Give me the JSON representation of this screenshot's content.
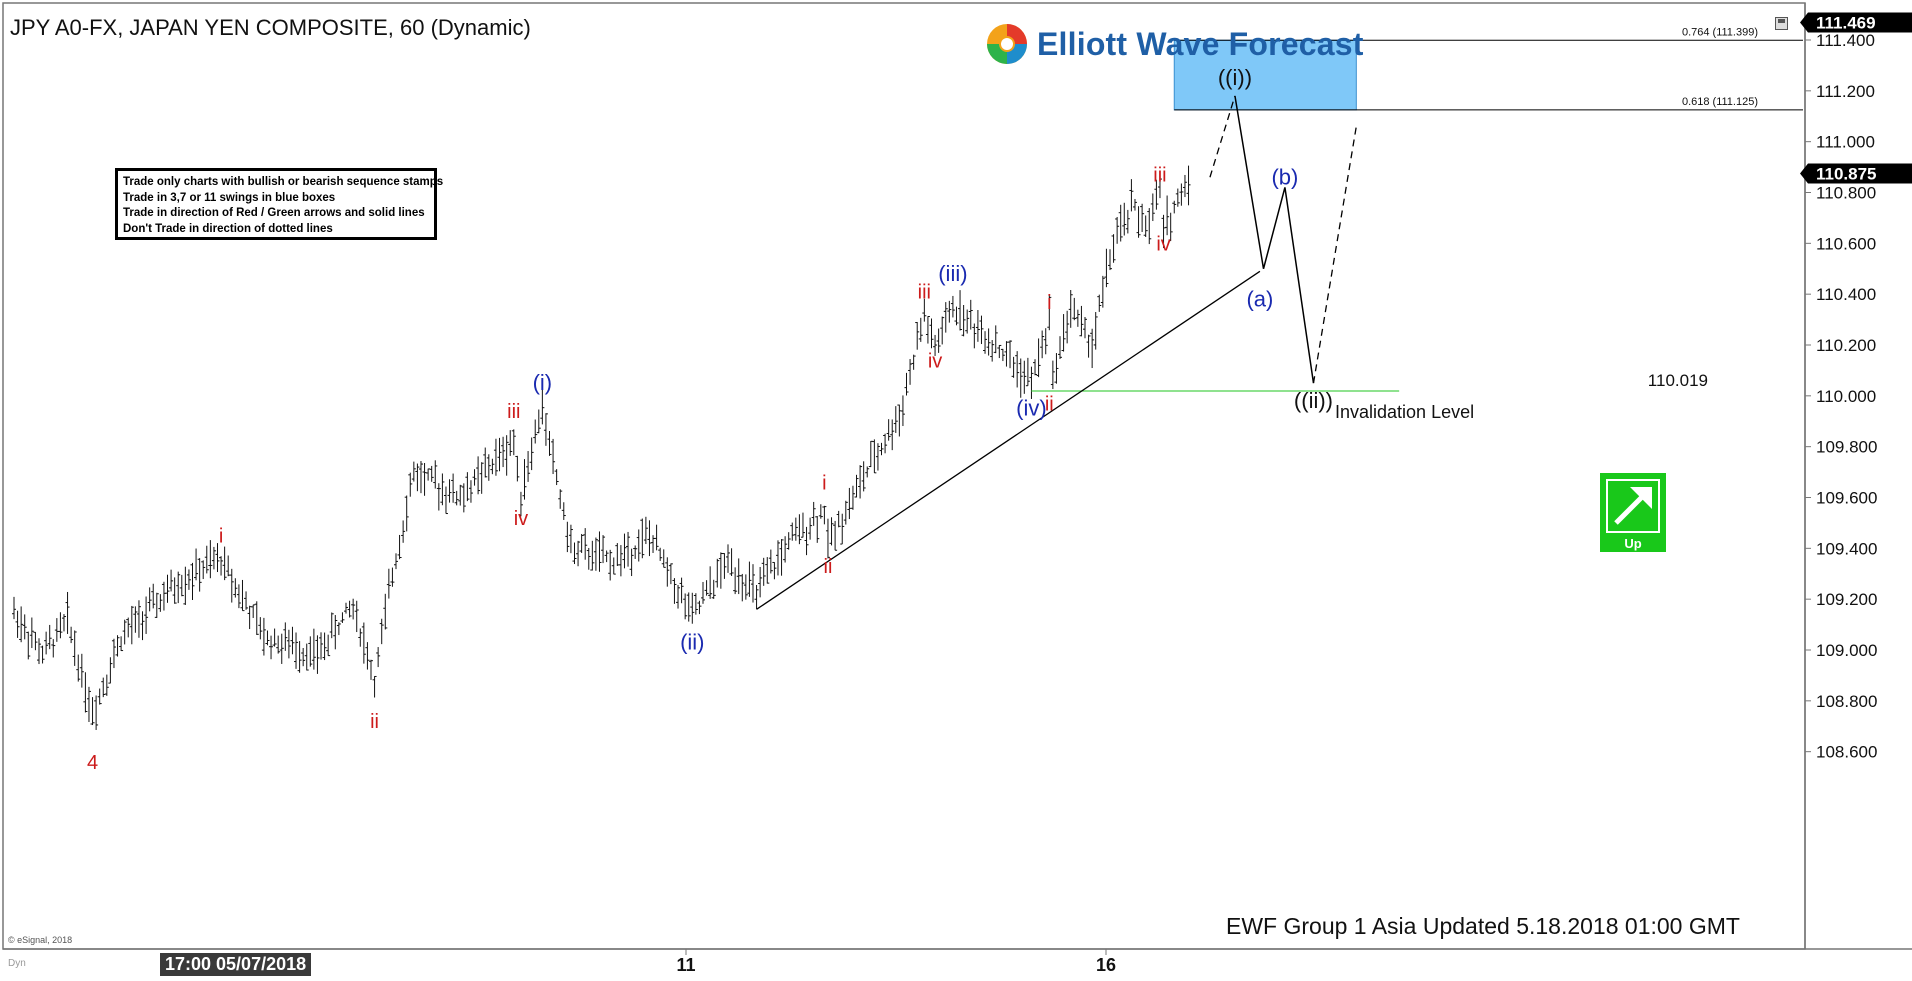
{
  "chart_title": "JPY A0-FX, JAPAN YEN COMPOSITE, 60 (Dynamic)",
  "logo_text": "Elliott Wave Forecast",
  "rules": [
    "Trade only charts with bullish or bearish sequence stamps",
    "Trade in 3,7 or 11 swings in blue boxes",
    "Trade in direction of Red / Green arrows and solid lines",
    "Don't Trade in direction of dotted lines"
  ],
  "footer_updated": "EWF Group 1 Asia Updated 5.18.2018  01:00 GMT",
  "copyright": "© eSignal, 2018",
  "dyn_label": "Dyn",
  "x_date_label": "17:00 05/07/2018",
  "up_label": "Up",
  "colors": {
    "red": "#cc1b1b",
    "blue": "#1a2ab0",
    "green": "#19c81a",
    "box_blue": "#7fc8f8",
    "price_bar": "#111111"
  },
  "chart_data": {
    "type": "bar",
    "subtype": "ohlc",
    "ylim": [
      108.4,
      111.5
    ],
    "y_ticks": [
      "111.400",
      "111.200",
      "111.000",
      "110.800",
      "110.600",
      "110.400",
      "110.200",
      "110.000",
      "109.800",
      "109.600",
      "109.400",
      "109.200",
      "109.000",
      "108.800",
      "108.600"
    ],
    "x_ticks": [
      "11",
      "16"
    ],
    "last_price_label": "110.875",
    "top_price_label": "111.469",
    "fib_levels": [
      {
        "label": "0.764 (111.399)",
        "value": 111.399
      },
      {
        "label": "0.618 (111.125)",
        "value": 111.125
      }
    ],
    "invalidation": {
      "value": 110.019,
      "value_label": "110.019",
      "text": "Invalidation Level"
    },
    "wave_labels": [
      {
        "text": "4",
        "color": "red",
        "bar": 22,
        "price": 108.56
      },
      {
        "text": "i",
        "color": "red",
        "bar": 58,
        "price": 109.45
      },
      {
        "text": "ii",
        "color": "red",
        "bar": 101,
        "price": 108.72
      },
      {
        "text": "iii",
        "color": "red",
        "bar": 140,
        "price": 109.94
      },
      {
        "text": "iv",
        "color": "red",
        "bar": 142,
        "price": 109.52
      },
      {
        "text": "(i)",
        "color": "blue",
        "bar": 148,
        "price": 110.05
      },
      {
        "text": "(ii)",
        "color": "blue",
        "bar": 190,
        "price": 109.03
      },
      {
        "text": "i",
        "color": "red",
        "bar": 227,
        "price": 109.66
      },
      {
        "text": "ii",
        "color": "red",
        "bar": 228,
        "price": 109.33
      },
      {
        "text": "iii",
        "color": "red",
        "bar": 255,
        "price": 110.41
      },
      {
        "text": "iv",
        "color": "red",
        "bar": 258,
        "price": 110.14
      },
      {
        "text": "(iii)",
        "color": "blue",
        "bar": 263,
        "price": 110.48
      },
      {
        "text": "(iv)",
        "color": "blue",
        "bar": 285,
        "price": 109.95
      },
      {
        "text": "i",
        "color": "red",
        "bar": 290,
        "price": 110.37
      },
      {
        "text": "ii",
        "color": "red",
        "bar": 290,
        "price": 109.97
      },
      {
        "text": "iii",
        "color": "red",
        "bar": 321,
        "price": 110.87
      },
      {
        "text": "iv",
        "color": "red",
        "bar": 322,
        "price": 110.6
      },
      {
        "text": "((i))",
        "color": "black",
        "bar": 342,
        "price": 111.25
      },
      {
        "text": "(b)",
        "color": "blue",
        "bar": 356,
        "price": 110.86
      },
      {
        "text": "(a)",
        "color": "blue",
        "bar": 349,
        "price": 110.38
      },
      {
        "text": "((ii))",
        "color": "black",
        "bar": 364,
        "price": 109.98
      }
    ],
    "projection": {
      "dashed_to_i": [
        {
          "bar": 335,
          "price": 110.86
        },
        {
          "bar": 342,
          "price": 111.18
        }
      ],
      "solid_path": [
        {
          "bar": 342,
          "price": 111.18
        },
        {
          "bar": 350,
          "price": 110.5
        },
        {
          "bar": 356,
          "price": 110.82
        },
        {
          "bar": 364,
          "price": 110.05
        }
      ],
      "dashed_up": [
        {
          "bar": 364,
          "price": 110.05
        },
        {
          "bar": 376,
          "price": 111.06
        }
      ]
    },
    "trendline": [
      {
        "bar": 208,
        "price": 109.16
      },
      {
        "bar": 349,
        "price": 110.49
      }
    ],
    "blue_box": {
      "bar_from": 325,
      "bar_to": 376,
      "price_low": 111.125,
      "price_high": 111.399
    }
  }
}
